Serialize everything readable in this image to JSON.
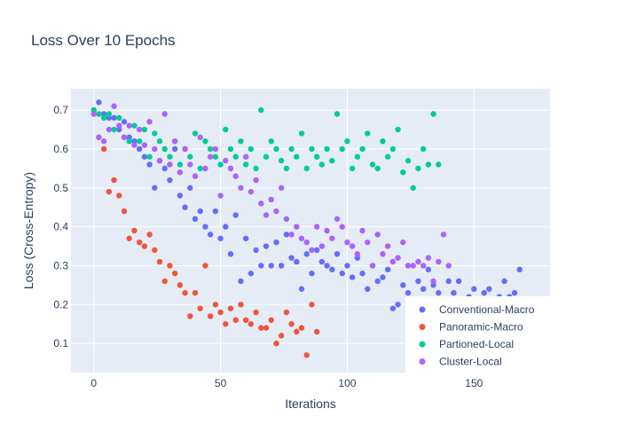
{
  "chart_data": {
    "type": "scatter",
    "title": "Loss Over 10 Epochs",
    "xlabel": "Iterations",
    "ylabel": "Loss (Cross-Entropy)",
    "xlim": [
      -9,
      180
    ],
    "ylim": [
      0.025,
      0.755
    ],
    "xticks": [
      0,
      50,
      100,
      150
    ],
    "yticks": [
      0.1,
      0.2,
      0.3,
      0.4,
      0.5,
      0.6,
      0.7
    ],
    "ytick_labels": [
      "0.1",
      "0.2",
      "0.3",
      "0.4",
      "0.5",
      "0.6",
      "0.7"
    ],
    "grid": true,
    "legend_position": "bottom-right",
    "series": [
      {
        "name": "Conventional-Macro",
        "color": "#636efa",
        "x": [
          0,
          2,
          4,
          6,
          8,
          10,
          12,
          14,
          16,
          18,
          20,
          22,
          24,
          26,
          28,
          30,
          32,
          34,
          36,
          38,
          40,
          42,
          44,
          46,
          48,
          50,
          52,
          54,
          56,
          58,
          60,
          62,
          64,
          66,
          68,
          70,
          72,
          74,
          76,
          78,
          80,
          82,
          84,
          86,
          88,
          90,
          92,
          94,
          96,
          98,
          100,
          102,
          104,
          106,
          108,
          110,
          112,
          114,
          116,
          118,
          120,
          122,
          124,
          126,
          128,
          130,
          132,
          134,
          136,
          138,
          140,
          142,
          144,
          146,
          148,
          150,
          152,
          154,
          156,
          158,
          160,
          162,
          164,
          166,
          168
        ],
        "y": [
          0.7,
          0.72,
          0.69,
          0.68,
          0.68,
          0.65,
          0.67,
          0.63,
          0.62,
          0.6,
          0.58,
          0.56,
          0.5,
          0.57,
          0.55,
          0.52,
          0.6,
          0.48,
          0.45,
          0.5,
          0.42,
          0.44,
          0.4,
          0.38,
          0.44,
          0.37,
          0.4,
          0.33,
          0.43,
          0.26,
          0.37,
          0.28,
          0.34,
          0.3,
          0.35,
          0.3,
          0.36,
          0.3,
          0.38,
          0.32,
          0.31,
          0.24,
          0.33,
          0.28,
          0.34,
          0.31,
          0.3,
          0.29,
          0.33,
          0.28,
          0.3,
          0.27,
          0.32,
          0.28,
          0.24,
          0.3,
          0.26,
          0.27,
          0.29,
          0.19,
          0.2,
          0.25,
          0.23,
          0.21,
          0.26,
          0.24,
          0.29,
          0.25,
          0.23,
          0.2,
          0.26,
          0.23,
          0.26,
          0.21,
          0.22,
          0.24,
          0.2,
          0.23,
          0.24,
          0.2,
          0.22,
          0.26,
          0.22,
          0.23,
          0.29
        ]
      },
      {
        "name": "Panoramic-Macro",
        "color": "#ef553b",
        "x": [
          0,
          2,
          4,
          6,
          8,
          10,
          12,
          14,
          16,
          18,
          20,
          22,
          24,
          26,
          28,
          30,
          32,
          34,
          36,
          38,
          40,
          42,
          44,
          46,
          48,
          50,
          52,
          54,
          56,
          58,
          60,
          62,
          64,
          66,
          68,
          70,
          72,
          74,
          76,
          78,
          80,
          82,
          84,
          86,
          88
        ],
        "y": [
          0.69,
          0.63,
          0.6,
          0.49,
          0.52,
          0.48,
          0.44,
          0.37,
          0.39,
          0.36,
          0.35,
          0.38,
          0.34,
          0.31,
          0.26,
          0.3,
          0.28,
          0.25,
          0.23,
          0.17,
          0.23,
          0.19,
          0.3,
          0.17,
          0.2,
          0.18,
          0.15,
          0.19,
          0.16,
          0.2,
          0.16,
          0.15,
          0.18,
          0.14,
          0.14,
          0.16,
          0.1,
          0.12,
          0.18,
          0.15,
          0.13,
          0.14,
          0.07,
          0.2,
          0.13
        ]
      },
      {
        "name": "Partioned-Local",
        "color": "#00cc96",
        "x": [
          0,
          2,
          4,
          6,
          8,
          10,
          12,
          14,
          16,
          18,
          20,
          22,
          24,
          26,
          28,
          30,
          32,
          34,
          36,
          38,
          40,
          42,
          44,
          46,
          48,
          50,
          52,
          54,
          56,
          58,
          60,
          62,
          64,
          66,
          68,
          70,
          72,
          74,
          76,
          78,
          80,
          82,
          84,
          86,
          88,
          90,
          92,
          94,
          96,
          98,
          100,
          102,
          104,
          106,
          108,
          110,
          112,
          114,
          116,
          118,
          120,
          122,
          124,
          126,
          128,
          130,
          132,
          134,
          136
        ],
        "y": [
          0.7,
          0.69,
          0.68,
          0.69,
          0.65,
          0.68,
          0.63,
          0.62,
          0.66,
          0.62,
          0.65,
          0.58,
          0.64,
          0.62,
          0.6,
          0.58,
          0.62,
          0.56,
          0.6,
          0.58,
          0.64,
          0.55,
          0.62,
          0.6,
          0.58,
          0.56,
          0.65,
          0.6,
          0.58,
          0.62,
          0.56,
          0.6,
          0.55,
          0.7,
          0.58,
          0.62,
          0.6,
          0.57,
          0.55,
          0.6,
          0.58,
          0.64,
          0.55,
          0.6,
          0.58,
          0.56,
          0.6,
          0.57,
          0.69,
          0.6,
          0.62,
          0.55,
          0.58,
          0.6,
          0.64,
          0.56,
          0.55,
          0.62,
          0.58,
          0.6,
          0.65,
          0.54,
          0.57,
          0.5,
          0.55,
          0.6,
          0.56,
          0.69,
          0.56
        ]
      },
      {
        "name": "Cluster-Local",
        "color": "#ab63fa",
        "x": [
          0,
          2,
          4,
          6,
          8,
          10,
          12,
          14,
          16,
          18,
          20,
          22,
          24,
          26,
          28,
          30,
          32,
          34,
          36,
          38,
          40,
          42,
          44,
          46,
          48,
          50,
          52,
          54,
          56,
          58,
          60,
          62,
          64,
          66,
          68,
          70,
          72,
          74,
          76,
          78,
          80,
          82,
          84,
          86,
          88,
          90,
          92,
          94,
          96,
          98,
          100,
          102,
          104,
          106,
          108,
          110,
          112,
          114,
          116,
          118,
          120,
          122,
          124,
          126,
          128,
          130,
          132,
          134,
          136,
          138,
          140
        ],
        "y": [
          0.69,
          0.63,
          0.62,
          0.65,
          0.71,
          0.66,
          0.63,
          0.66,
          0.61,
          0.65,
          0.61,
          0.67,
          0.6,
          0.57,
          0.69,
          0.56,
          0.62,
          0.54,
          0.6,
          0.56,
          0.53,
          0.63,
          0.55,
          0.58,
          0.6,
          0.48,
          0.57,
          0.55,
          0.53,
          0.5,
          0.58,
          0.49,
          0.52,
          0.46,
          0.43,
          0.47,
          0.44,
          0.5,
          0.42,
          0.38,
          0.4,
          0.37,
          0.36,
          0.34,
          0.4,
          0.35,
          0.39,
          0.37,
          0.42,
          0.4,
          0.36,
          0.35,
          0.33,
          0.39,
          0.36,
          0.3,
          0.38,
          0.33,
          0.35,
          0.31,
          0.32,
          0.36,
          0.3,
          0.3,
          0.31,
          0.3,
          0.32,
          0.26,
          0.31,
          0.38,
          0.3
        ]
      }
    ]
  }
}
